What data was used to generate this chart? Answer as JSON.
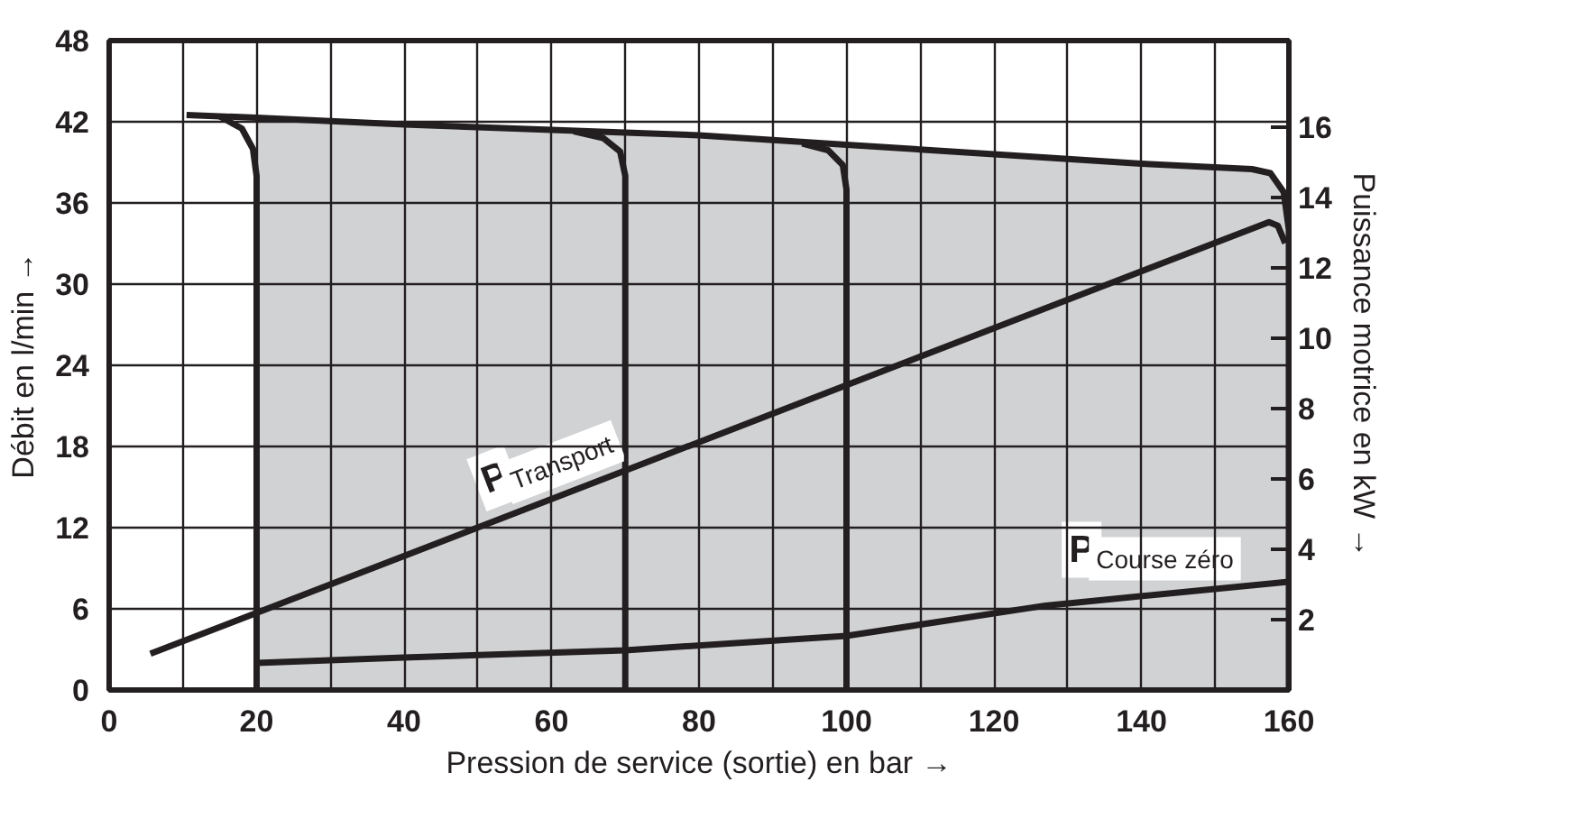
{
  "chart_data": {
    "type": "line",
    "xlabel": "Pression de service (sortie) en bar →",
    "ylabel": "Débit en l/min →",
    "y2label": "Puissance motrice en kW →",
    "xlim": [
      0,
      160
    ],
    "xticks": [
      0,
      {
        "value": 10,
        "label": null
      },
      20,
      {
        "value": 30,
        "label": null
      },
      40,
      {
        "value": 50,
        "label": null
      },
      60,
      {
        "value": 70,
        "label": null
      },
      80,
      {
        "value": 90,
        "label": null
      },
      100,
      {
        "value": 110,
        "label": null
      },
      120,
      {
        "value": 130,
        "label": null
      },
      140,
      {
        "value": 150,
        "label": null
      },
      160
    ],
    "ylim": [
      0,
      48
    ],
    "yticks": [
      0,
      6,
      12,
      18,
      24,
      30,
      36,
      42,
      48
    ],
    "y2lim": [
      0,
      18.46
    ],
    "y2ticks": [
      2,
      4,
      6,
      8,
      10,
      12,
      14,
      16
    ],
    "grid": true,
    "series": [
      {
        "type": "area",
        "color": "#d1d2d4",
        "x": [
          20,
          40,
          60,
          70,
          80,
          100,
          120,
          140,
          155,
          157.5,
          159.3,
          160,
          160
        ],
        "values": [
          42.3,
          41.8,
          41.4,
          41.2,
          41,
          40.3,
          39.6,
          38.9,
          38.5,
          38.2,
          36.8,
          34,
          0
        ]
      },
      {
        "color": "#231f20",
        "x": [
          10.5,
          20,
          40,
          60,
          70,
          80,
          100,
          120,
          140,
          155,
          157.5,
          159.3,
          160,
          160
        ],
        "values": [
          42.5,
          42.3,
          41.8,
          41.4,
          41.2,
          41,
          40.3,
          39.6,
          38.9,
          38.5,
          38.2,
          36.8,
          34,
          0
        ]
      },
      {
        "color": "#231f20",
        "x": [
          15,
          18,
          19.5,
          20,
          20
        ],
        "values": [
          42.4,
          41.5,
          40,
          38,
          0
        ]
      },
      {
        "color": "#231f20",
        "x": [
          63,
          67,
          69.3,
          70,
          70
        ],
        "values": [
          41.3,
          40.8,
          39.8,
          38,
          0
        ]
      },
      {
        "color": "#231f20",
        "x": [
          94,
          97.5,
          99.5,
          100,
          100
        ],
        "values": [
          40.4,
          39.9,
          38.8,
          37,
          0
        ]
      },
      {
        "axis": "y2",
        "name": "P$_{Transport}$",
        "color": "#231f20",
        "x": [
          5.6,
          157.3,
          158.5,
          159.5
        ],
        "values": [
          1.03,
          13.3,
          13.2,
          12.7
        ]
      },
      {
        "axis": "y2",
        "name": "P$_{Course zéro}$",
        "color": "#231f20",
        "x": [
          20,
          40,
          70,
          100,
          127,
          160
        ],
        "values": [
          0.77,
          0.92,
          1.13,
          1.54,
          2.4,
          3.08
        ]
      }
    ]
  }
}
